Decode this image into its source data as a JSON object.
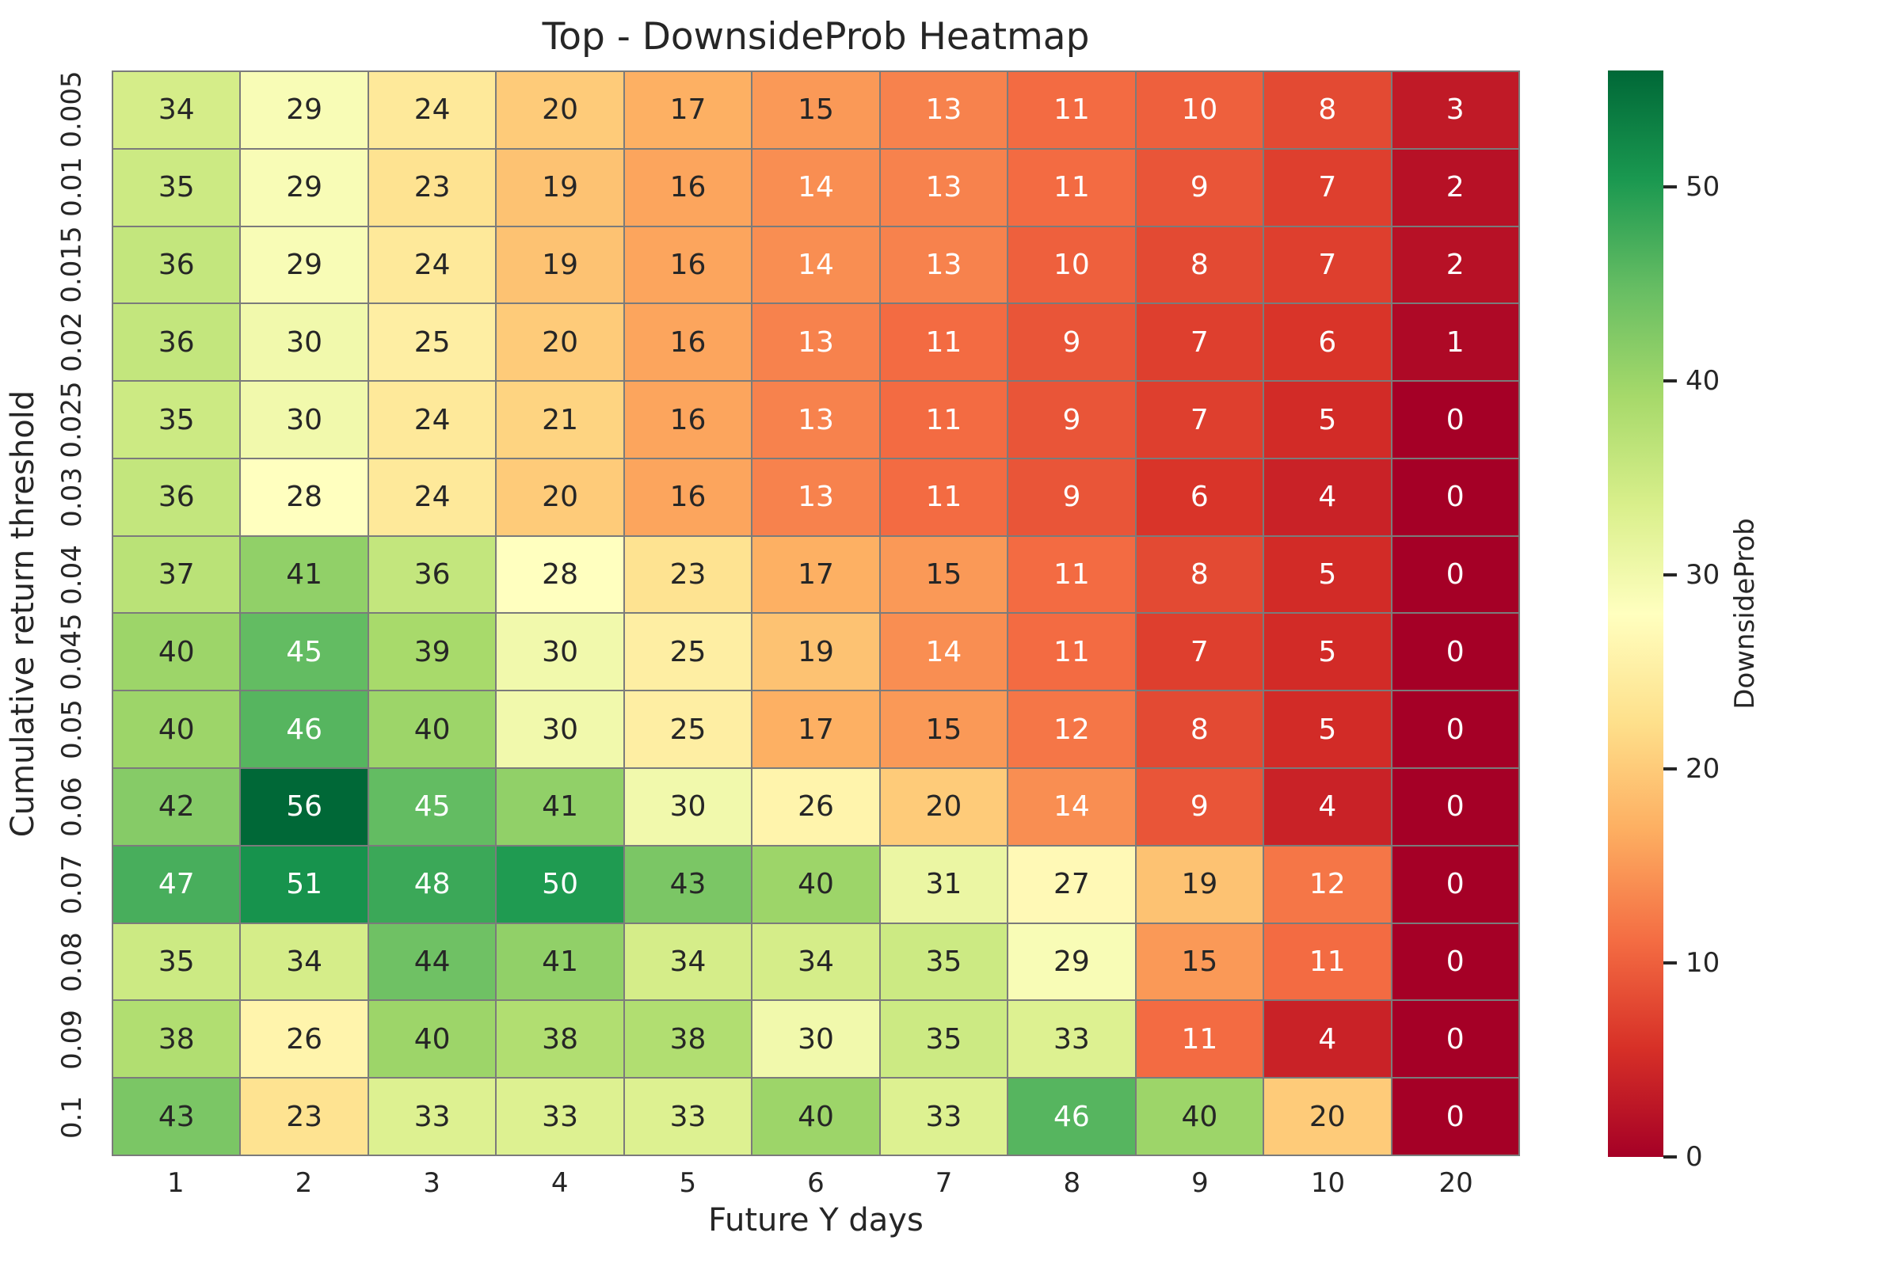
{
  "chart_data": {
    "type": "heatmap",
    "title": "Top - DownsideProb Heatmap",
    "xlabel": "Future Y days",
    "ylabel": "Cumulative return threshold",
    "x_labels": [
      "1",
      "2",
      "3",
      "4",
      "5",
      "6",
      "7",
      "8",
      "9",
      "10",
      "20"
    ],
    "y_labels": [
      "0.005",
      "0.01",
      "0.015",
      "0.02",
      "0.025",
      "0.03",
      "0.04",
      "0.045",
      "0.05",
      "0.06",
      "0.07",
      "0.08",
      "0.09",
      "0.1"
    ],
    "values": [
      [
        34,
        29,
        24,
        20,
        17,
        15,
        13,
        11,
        10,
        8,
        3
      ],
      [
        35,
        29,
        23,
        19,
        16,
        14,
        13,
        11,
        9,
        7,
        2
      ],
      [
        36,
        29,
        24,
        19,
        16,
        14,
        13,
        10,
        8,
        7,
        2
      ],
      [
        36,
        30,
        25,
        20,
        16,
        13,
        11,
        9,
        7,
        6,
        1
      ],
      [
        35,
        30,
        24,
        21,
        16,
        13,
        11,
        9,
        7,
        5,
        0
      ],
      [
        36,
        28,
        24,
        20,
        16,
        13,
        11,
        9,
        6,
        4,
        0
      ],
      [
        37,
        41,
        36,
        28,
        23,
        17,
        15,
        11,
        8,
        5,
        0
      ],
      [
        40,
        45,
        39,
        30,
        25,
        19,
        14,
        11,
        7,
        5,
        0
      ],
      [
        40,
        46,
        40,
        30,
        25,
        17,
        15,
        12,
        8,
        5,
        0
      ],
      [
        42,
        56,
        45,
        41,
        30,
        26,
        20,
        14,
        9,
        4,
        0
      ],
      [
        47,
        51,
        48,
        50,
        43,
        40,
        31,
        27,
        19,
        12,
        0
      ],
      [
        35,
        34,
        44,
        41,
        34,
        34,
        35,
        29,
        15,
        11,
        0
      ],
      [
        38,
        26,
        40,
        38,
        38,
        30,
        35,
        33,
        11,
        4,
        0
      ],
      [
        43,
        23,
        33,
        33,
        33,
        40,
        33,
        46,
        40,
        20,
        0
      ]
    ],
    "vmin": 0,
    "vmax": 56,
    "colormap": "RdYlGn",
    "palette_rdylgn": [
      "#a50026",
      "#d73027",
      "#f46d43",
      "#fdae61",
      "#fee08b",
      "#ffffbf",
      "#d9ef8b",
      "#a6d96a",
      "#66bd63",
      "#1a9850",
      "#006837"
    ],
    "colorbar": {
      "label": "DownsideProb",
      "ticks": [
        0,
        10,
        20,
        30,
        40,
        50
      ]
    },
    "grid_line_color": "#7b7b7b",
    "text_dark": "#262626",
    "text_light": "#ffffff",
    "legend_position": "right",
    "grid": "cell-borders"
  }
}
